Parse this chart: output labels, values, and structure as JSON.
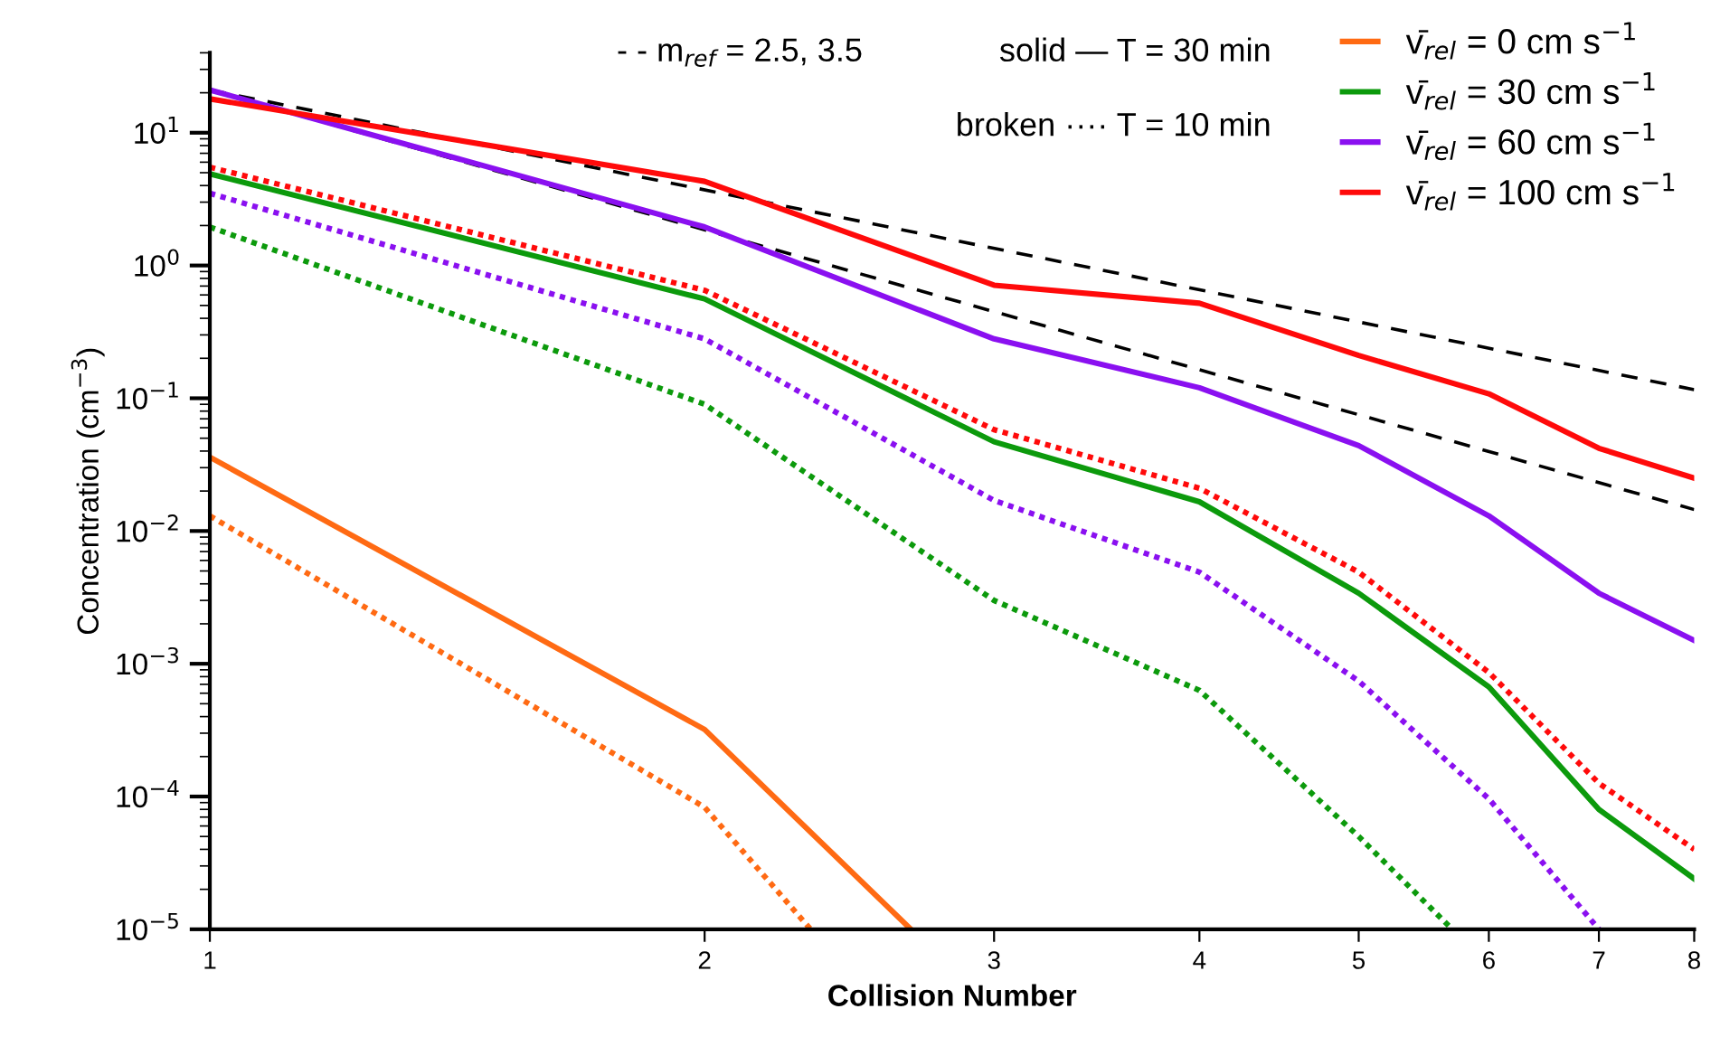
{
  "chart_data": {
    "type": "line",
    "xlabel": "Collision Number",
    "ylabel": "Concentration (cm$^{−3}$)",
    "log": "xy",
    "grid": false,
    "legend": "top right",
    "xlim": [
      1,
      8
    ],
    "xticks": [
      1,
      2,
      3,
      4,
      5,
      6,
      7,
      8
    ],
    "ylim": [
      1e-05,
      40
    ],
    "yticks": [
      {
        "value": 1e-05,
        "label": "10$^{−5}$"
      },
      {
        "value": 0.0001,
        "label": "10$^{−4}$"
      },
      {
        "value": 0.001,
        "label": "10$^{−3}$"
      },
      {
        "value": 0.01,
        "label": "10$^{−2}$"
      },
      {
        "value": 0.1,
        "label": "10$^{−1}$"
      },
      {
        "value": 1,
        "label": "10$^{0}$"
      },
      {
        "value": 10,
        "label": "10$^{1}$"
      }
    ],
    "annotations": [
      "- - m$_{ref}$ = 2.5, 3.5",
      "solid — T = 30 min",
      "broken ···· T = 10 min"
    ],
    "series": [
      {
        "color": "#000000",
        "line_style": "dashed",
        "x": [
          1,
          8
        ],
        "values": [
          21,
          0.116
        ]
      },
      {
        "color": "#000000",
        "line_style": "dashed",
        "x": [
          1,
          8
        ],
        "values": [
          21,
          0.0145
        ]
      },
      {
        "name": "v̄$_{rel}$ = 0 cm s$^{−1}$",
        "color": "#ff6a13",
        "line_style": "solid",
        "x": [
          1,
          2,
          2.67
        ],
        "values": [
          0.036,
          0.00032,
          1e-05
        ]
      },
      {
        "color": "#ff6a13",
        "line_style": "dotted",
        "x": [
          1,
          2,
          2.32
        ],
        "values": [
          0.013,
          8.3e-05,
          1e-05
        ]
      },
      {
        "name": "v̄$_{rel}$ = 30 cm s$^{−1}$",
        "color": "#0c9a0c",
        "line_style": "solid",
        "x": [
          1,
          2,
          3,
          4,
          5,
          6,
          7,
          8
        ],
        "values": [
          4.9,
          0.56,
          0.047,
          0.0166,
          0.0034,
          0.00067,
          8e-05,
          2.4e-05
        ]
      },
      {
        "color": "#0c9a0c",
        "line_style": "dotted",
        "x": [
          1,
          2,
          3,
          4,
          5,
          5.7
        ],
        "values": [
          1.95,
          0.09,
          0.003,
          0.00063,
          5e-05,
          1e-05
        ]
      },
      {
        "name": "v̄$_{rel}$ = 60 cm s$^{−1}$",
        "color": "#8a10f0",
        "line_style": "solid",
        "x": [
          1,
          2,
          3,
          4,
          5,
          6,
          7,
          8
        ],
        "values": [
          21,
          1.95,
          0.28,
          0.12,
          0.044,
          0.013,
          0.0034,
          0.0015
        ]
      },
      {
        "color": "#8a10f0",
        "line_style": "dotted",
        "x": [
          1,
          2,
          3,
          4,
          5,
          6,
          7
        ],
        "values": [
          3.5,
          0.28,
          0.017,
          0.0049,
          0.00074,
          9.6e-05,
          1e-05
        ]
      },
      {
        "name": "v̄$_{rel}$ = 100 cm s$^{−1}$",
        "color": "#ff0a0a",
        "line_style": "solid",
        "x": [
          1,
          2,
          3,
          4,
          5,
          6,
          7,
          8
        ],
        "values": [
          18,
          4.3,
          0.71,
          0.52,
          0.21,
          0.108,
          0.042,
          0.025
        ]
      },
      {
        "color": "#ff0a0a",
        "line_style": "dotted",
        "x": [
          1,
          2,
          3,
          4,
          5,
          6,
          7,
          8
        ],
        "values": [
          5.5,
          0.65,
          0.058,
          0.021,
          0.0049,
          0.00086,
          0.000126,
          4e-05
        ]
      }
    ]
  }
}
